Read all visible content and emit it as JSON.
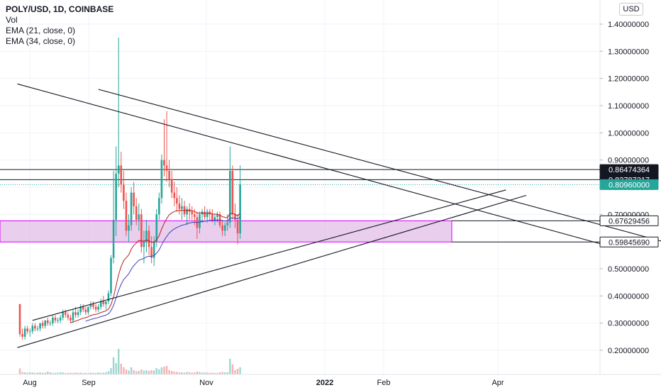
{
  "legend": {
    "title": "POLY/USD, 1D, COINBASE",
    "vol": "Vol",
    "ema21": "EMA (21, close, 0)",
    "ema34": "EMA (34, close, 0)"
  },
  "currency": "USD",
  "colors": {
    "up": "#26a69a",
    "down": "#ef5350",
    "ema21": "#b71c1c",
    "ema34": "#3f3fbf",
    "zone": "#e1bee7",
    "zone_border": "#d500f9",
    "current_price": "#26a69a"
  },
  "chart_data": {
    "type": "candlestick",
    "symbol": "POLY/USD",
    "interval": "1D",
    "exchange": "COINBASE",
    "ylim": [
      0.12,
      1.48
    ],
    "y_ticks": [
      "0.20000000",
      "0.30000000",
      "0.40000000",
      "0.50000000",
      "0.60000000",
      "0.70000000",
      "0.80000000",
      "0.90000000",
      "1.00000000",
      "1.10000000",
      "1.20000000",
      "1.30000000",
      "1.40000000"
    ],
    "x_ticks": [
      "Aug",
      "Sep",
      "Nov",
      "2022",
      "Feb",
      "Apr"
    ],
    "price_labels": [
      {
        "text": "0.86474364",
        "value": 0.86474364,
        "style": "black"
      },
      {
        "text": "0.82787317",
        "value": 0.82787317,
        "style": "black"
      },
      {
        "text": "0.80960000",
        "value": 0.8096,
        "style": "current"
      },
      {
        "text": "0.67629456",
        "value": 0.67629456,
        "style": "outline"
      },
      {
        "text": "0.59845690",
        "value": 0.5984569,
        "style": "outline"
      }
    ],
    "zone": {
      "top": 0.67629456,
      "bottom": 0.5984569
    },
    "candles": [
      [
        0.37,
        0.37,
        0.25,
        0.26
      ],
      [
        0.26,
        0.28,
        0.24,
        0.25
      ],
      [
        0.25,
        0.29,
        0.24,
        0.28
      ],
      [
        0.28,
        0.29,
        0.26,
        0.27
      ],
      [
        0.27,
        0.28,
        0.25,
        0.27
      ],
      [
        0.27,
        0.3,
        0.26,
        0.29
      ],
      [
        0.29,
        0.3,
        0.27,
        0.28
      ],
      [
        0.28,
        0.29,
        0.27,
        0.28
      ],
      [
        0.28,
        0.3,
        0.27,
        0.3
      ],
      [
        0.3,
        0.31,
        0.28,
        0.29
      ],
      [
        0.29,
        0.31,
        0.28,
        0.31
      ],
      [
        0.31,
        0.32,
        0.29,
        0.3
      ],
      [
        0.3,
        0.31,
        0.29,
        0.3
      ],
      [
        0.3,
        0.33,
        0.29,
        0.32
      ],
      [
        0.32,
        0.33,
        0.3,
        0.31
      ],
      [
        0.31,
        0.32,
        0.3,
        0.31
      ],
      [
        0.31,
        0.33,
        0.3,
        0.32
      ],
      [
        0.32,
        0.35,
        0.31,
        0.34
      ],
      [
        0.34,
        0.35,
        0.32,
        0.33
      ],
      [
        0.33,
        0.34,
        0.31,
        0.32
      ],
      [
        0.32,
        0.33,
        0.3,
        0.31
      ],
      [
        0.31,
        0.35,
        0.3,
        0.34
      ],
      [
        0.34,
        0.36,
        0.32,
        0.33
      ],
      [
        0.33,
        0.35,
        0.32,
        0.34
      ],
      [
        0.34,
        0.37,
        0.33,
        0.36
      ],
      [
        0.36,
        0.37,
        0.34,
        0.35
      ],
      [
        0.35,
        0.36,
        0.33,
        0.34
      ],
      [
        0.34,
        0.36,
        0.33,
        0.36
      ],
      [
        0.36,
        0.38,
        0.35,
        0.37
      ],
      [
        0.37,
        0.38,
        0.35,
        0.36
      ],
      [
        0.36,
        0.37,
        0.34,
        0.35
      ],
      [
        0.35,
        0.37,
        0.34,
        0.36
      ],
      [
        0.36,
        0.39,
        0.35,
        0.38
      ],
      [
        0.38,
        0.4,
        0.36,
        0.37
      ],
      [
        0.37,
        0.38,
        0.35,
        0.38
      ],
      [
        0.38,
        0.42,
        0.37,
        0.41
      ],
      [
        0.41,
        0.55,
        0.4,
        0.54
      ],
      [
        0.54,
        0.86,
        0.52,
        0.68
      ],
      [
        0.68,
        0.95,
        0.62,
        0.85
      ],
      [
        0.85,
        1.35,
        0.8,
        0.88
      ],
      [
        0.88,
        0.93,
        0.78,
        0.81
      ],
      [
        0.81,
        0.86,
        0.72,
        0.75
      ],
      [
        0.75,
        0.78,
        0.62,
        0.64
      ],
      [
        0.64,
        0.7,
        0.6,
        0.66
      ],
      [
        0.66,
        0.8,
        0.64,
        0.78
      ],
      [
        0.78,
        0.82,
        0.7,
        0.73
      ],
      [
        0.73,
        0.76,
        0.66,
        0.68
      ],
      [
        0.68,
        0.74,
        0.64,
        0.7
      ],
      [
        0.7,
        0.72,
        0.56,
        0.58
      ],
      [
        0.58,
        0.64,
        0.52,
        0.6
      ],
      [
        0.6,
        0.68,
        0.56,
        0.64
      ],
      [
        0.64,
        0.66,
        0.55,
        0.58
      ],
      [
        0.58,
        0.62,
        0.52,
        0.54
      ],
      [
        0.54,
        0.62,
        0.51,
        0.6
      ],
      [
        0.6,
        0.72,
        0.58,
        0.7
      ],
      [
        0.7,
        0.78,
        0.68,
        0.76
      ],
      [
        0.76,
        0.92,
        0.74,
        0.9
      ],
      [
        0.9,
        1.05,
        0.84,
        0.88
      ],
      [
        0.88,
        1.08,
        0.82,
        0.86
      ],
      [
        0.86,
        0.9,
        0.8,
        0.83
      ],
      [
        0.83,
        0.86,
        0.76,
        0.78
      ],
      [
        0.78,
        0.82,
        0.73,
        0.76
      ],
      [
        0.76,
        0.8,
        0.71,
        0.74
      ],
      [
        0.74,
        0.77,
        0.7,
        0.72
      ],
      [
        0.72,
        0.76,
        0.68,
        0.73
      ],
      [
        0.73,
        0.75,
        0.69,
        0.7
      ],
      [
        0.7,
        0.73,
        0.66,
        0.72
      ],
      [
        0.72,
        0.74,
        0.68,
        0.71
      ],
      [
        0.71,
        0.73,
        0.68,
        0.7
      ],
      [
        0.7,
        0.72,
        0.66,
        0.69
      ],
      [
        0.69,
        0.71,
        0.61,
        0.65
      ],
      [
        0.65,
        0.71,
        0.63,
        0.7
      ],
      [
        0.7,
        0.72,
        0.67,
        0.71
      ],
      [
        0.71,
        0.73,
        0.68,
        0.69
      ],
      [
        0.69,
        0.72,
        0.67,
        0.71
      ],
      [
        0.71,
        0.72,
        0.68,
        0.7
      ],
      [
        0.7,
        0.72,
        0.67,
        0.68
      ],
      [
        0.68,
        0.7,
        0.66,
        0.69
      ],
      [
        0.69,
        0.71,
        0.67,
        0.7
      ],
      [
        0.7,
        0.71,
        0.65,
        0.66
      ],
      [
        0.66,
        0.68,
        0.62,
        0.64
      ],
      [
        0.64,
        0.67,
        0.62,
        0.66
      ],
      [
        0.66,
        0.7,
        0.64,
        0.67
      ],
      [
        0.67,
        0.95,
        0.65,
        0.86
      ],
      [
        0.86,
        0.88,
        0.68,
        0.7
      ],
      [
        0.7,
        0.74,
        0.65,
        0.68
      ],
      [
        0.68,
        0.7,
        0.59,
        0.63
      ],
      [
        0.63,
        0.88,
        0.61,
        0.81
      ]
    ],
    "volume": [
      0.85,
      0.35,
      0.3,
      0.25,
      0.3,
      0.28,
      0.22,
      0.25,
      0.3,
      0.22,
      0.25,
      0.4,
      0.3,
      0.2,
      0.22,
      0.25,
      0.3,
      0.28,
      0.2,
      0.22,
      0.25,
      0.2,
      0.28,
      0.22,
      0.25,
      0.2,
      0.22,
      0.18,
      0.25,
      0.22,
      0.2,
      0.28,
      0.22,
      0.25,
      0.3,
      0.45,
      0.9,
      2.4,
      1.6,
      3.6,
      1.5,
      1.0,
      0.7,
      0.55,
      1.0,
      0.6,
      0.45,
      0.5,
      0.7,
      0.55,
      0.6,
      0.5,
      0.6,
      0.55,
      0.9,
      0.7,
      1.0,
      1.1,
      1.2,
      0.6,
      0.5,
      0.4,
      0.35,
      0.3,
      0.3,
      0.25,
      0.35,
      0.3,
      0.25,
      0.28,
      0.4,
      0.35,
      0.25,
      0.28,
      0.25,
      0.22,
      0.25,
      0.2,
      0.22,
      0.3,
      0.35,
      0.28,
      0.3,
      2.2,
      1.4,
      0.6,
      0.8,
      1.0
    ],
    "trendlines": [
      {
        "from": [
          -1,
          1.18
        ],
        "to": [
          230,
          0.59
        ]
      },
      {
        "from": [
          31,
          1.16
        ],
        "to": [
          258,
          0.59
        ]
      },
      {
        "from": [
          5,
          0.31
        ],
        "to": [
          192,
          0.79
        ]
      },
      {
        "from": [
          -1,
          0.21
        ],
        "to": [
          200,
          0.77
        ]
      }
    ],
    "hlines": [
      0.86474364,
      0.82787317
    ],
    "current_price_line": 0.8096
  }
}
